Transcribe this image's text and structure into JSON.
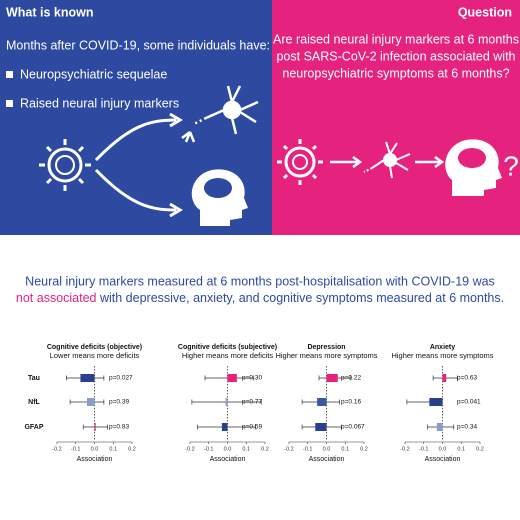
{
  "known": {
    "heading": "What is known",
    "intro": "Months after COVID-19, some individuals have:",
    "bullets": [
      "Neuropsychiatric sequelae",
      "Raised neural injury markers"
    ]
  },
  "question": {
    "heading": "Question",
    "lines": [
      "Are raised neural injury markers at 6 months",
      "post SARS-CoV-2 infection associated with",
      "neuropsychiatric symptoms at 6 months?"
    ]
  },
  "finding": {
    "line1": "Neural injury markers measured at 6 months post-hospitalisation with COVID-19 was",
    "highlight": "not associated",
    "rest": " with depressive, anxiety, and cognitive symptoms measured at 6 months."
  },
  "chart_data": [
    {
      "type": "forest",
      "title": "Cognitive deficits (objective)",
      "subtitle": "Lower means more deficits",
      "xlabel": "Association",
      "categories": [
        "Tau",
        "NfL",
        "GFAP"
      ],
      "values": [
        -0.075,
        -0.04,
        0.005
      ],
      "ci_low": [
        -0.15,
        -0.13,
        -0.06
      ],
      "ci_high": [
        0.05,
        0.05,
        0.07
      ],
      "colors": [
        "#2b3f91",
        "#8a9ccc",
        "#e5237f"
      ],
      "p_labels": [
        "p=0.027",
        "p=0.39",
        "p=0.83"
      ],
      "xlim": [
        -0.2,
        0.2
      ],
      "xticks": [
        -0.2,
        -0.1,
        {
          "value": 0,
          "label": "0.0"
        },
        0.1,
        0.2
      ]
    },
    {
      "type": "forest",
      "title": "Cognitive deficits (subjective)",
      "subtitle": "Higher means more deficits",
      "xlabel": "Association",
      "categories": [
        null,
        null,
        null
      ],
      "values": [
        0.05,
        -0.01,
        -0.03
      ],
      "ci_low": [
        -0.12,
        -0.19,
        -0.16
      ],
      "ci_high": [
        0.14,
        0.18,
        0.15
      ],
      "colors": [
        "#e5237f",
        "#8a9ccc",
        "#2b3f91"
      ],
      "p_labels": [
        "p=0.30",
        "p=0.77",
        "p=0.59"
      ],
      "xlim": [
        -0.2,
        0.2
      ],
      "xticks": [
        -0.2,
        -0.1,
        {
          "value": 0,
          "label": "0.0"
        },
        0.1,
        0.2
      ]
    },
    {
      "type": "forest",
      "title": "Depression",
      "subtitle": "Higher means more symptoms",
      "xlabel": "Association",
      "categories": [
        null,
        null,
        null
      ],
      "values": [
        0.06,
        -0.05,
        -0.06
      ],
      "ci_low": [
        -0.04,
        -0.13,
        -0.13
      ],
      "ci_high": [
        0.13,
        0.07,
        0.08
      ],
      "colors": [
        "#e5237f",
        "#3d55a3",
        "#2b3f91"
      ],
      "p_labels": [
        "p=0.22",
        "p=0.16",
        "p=0.067"
      ],
      "xlim": [
        -0.2,
        0.2
      ],
      "xticks": [
        -0.2,
        -0.1,
        {
          "value": 0,
          "label": "0.0"
        },
        0.1,
        0.2
      ]
    },
    {
      "type": "forest",
      "title": "Anxiety",
      "subtitle": "Higher means more symptoms",
      "xlabel": "Association",
      "categories": [
        null,
        null,
        null
      ],
      "values": [
        0.02,
        -0.07,
        -0.03
      ],
      "ci_low": [
        -0.05,
        -0.19,
        -0.08
      ],
      "ci_high": [
        0.08,
        -0.005,
        0.06
      ],
      "colors": [
        "#e5237f",
        "#2b3f91",
        "#8a9ccc"
      ],
      "p_labels": [
        "p=0.63",
        "p=0.041",
        "p=0.34"
      ],
      "xlim": [
        -0.2,
        0.2
      ],
      "xticks": [
        -0.2,
        -0.1,
        {
          "value": 0,
          "label": "0.0"
        },
        0.1,
        0.2
      ]
    }
  ]
}
